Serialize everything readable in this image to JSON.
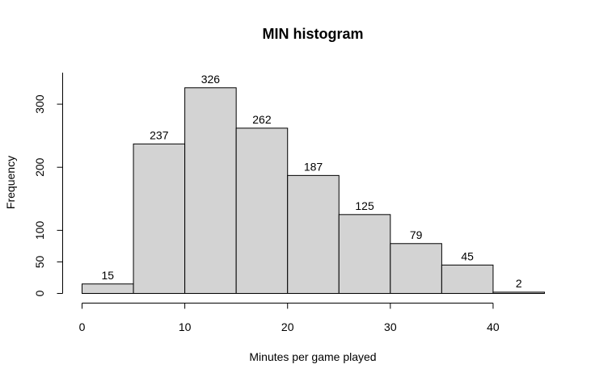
{
  "chart_data": {
    "type": "bar",
    "title": "MIN histogram",
    "xlabel": "Minutes per game played",
    "ylabel": "Frequency",
    "bins": [
      {
        "from": 0,
        "to": 5,
        "value": 15
      },
      {
        "from": 5,
        "to": 10,
        "value": 237
      },
      {
        "from": 10,
        "to": 15,
        "value": 326
      },
      {
        "from": 15,
        "to": 20,
        "value": 262
      },
      {
        "from": 20,
        "to": 25,
        "value": 187
      },
      {
        "from": 25,
        "to": 30,
        "value": 125
      },
      {
        "from": 30,
        "to": 35,
        "value": 79
      },
      {
        "from": 35,
        "to": 40,
        "value": 45
      },
      {
        "from": 40,
        "to": 45,
        "value": 2
      }
    ],
    "xticks": [
      0,
      10,
      20,
      30,
      40
    ],
    "yticks": [
      0,
      50,
      100,
      200,
      300
    ],
    "xlim": [
      0,
      45
    ],
    "ylim": [
      0,
      350
    ],
    "grid": false,
    "bar_color": "#d3d3d3",
    "data_labels": true
  }
}
